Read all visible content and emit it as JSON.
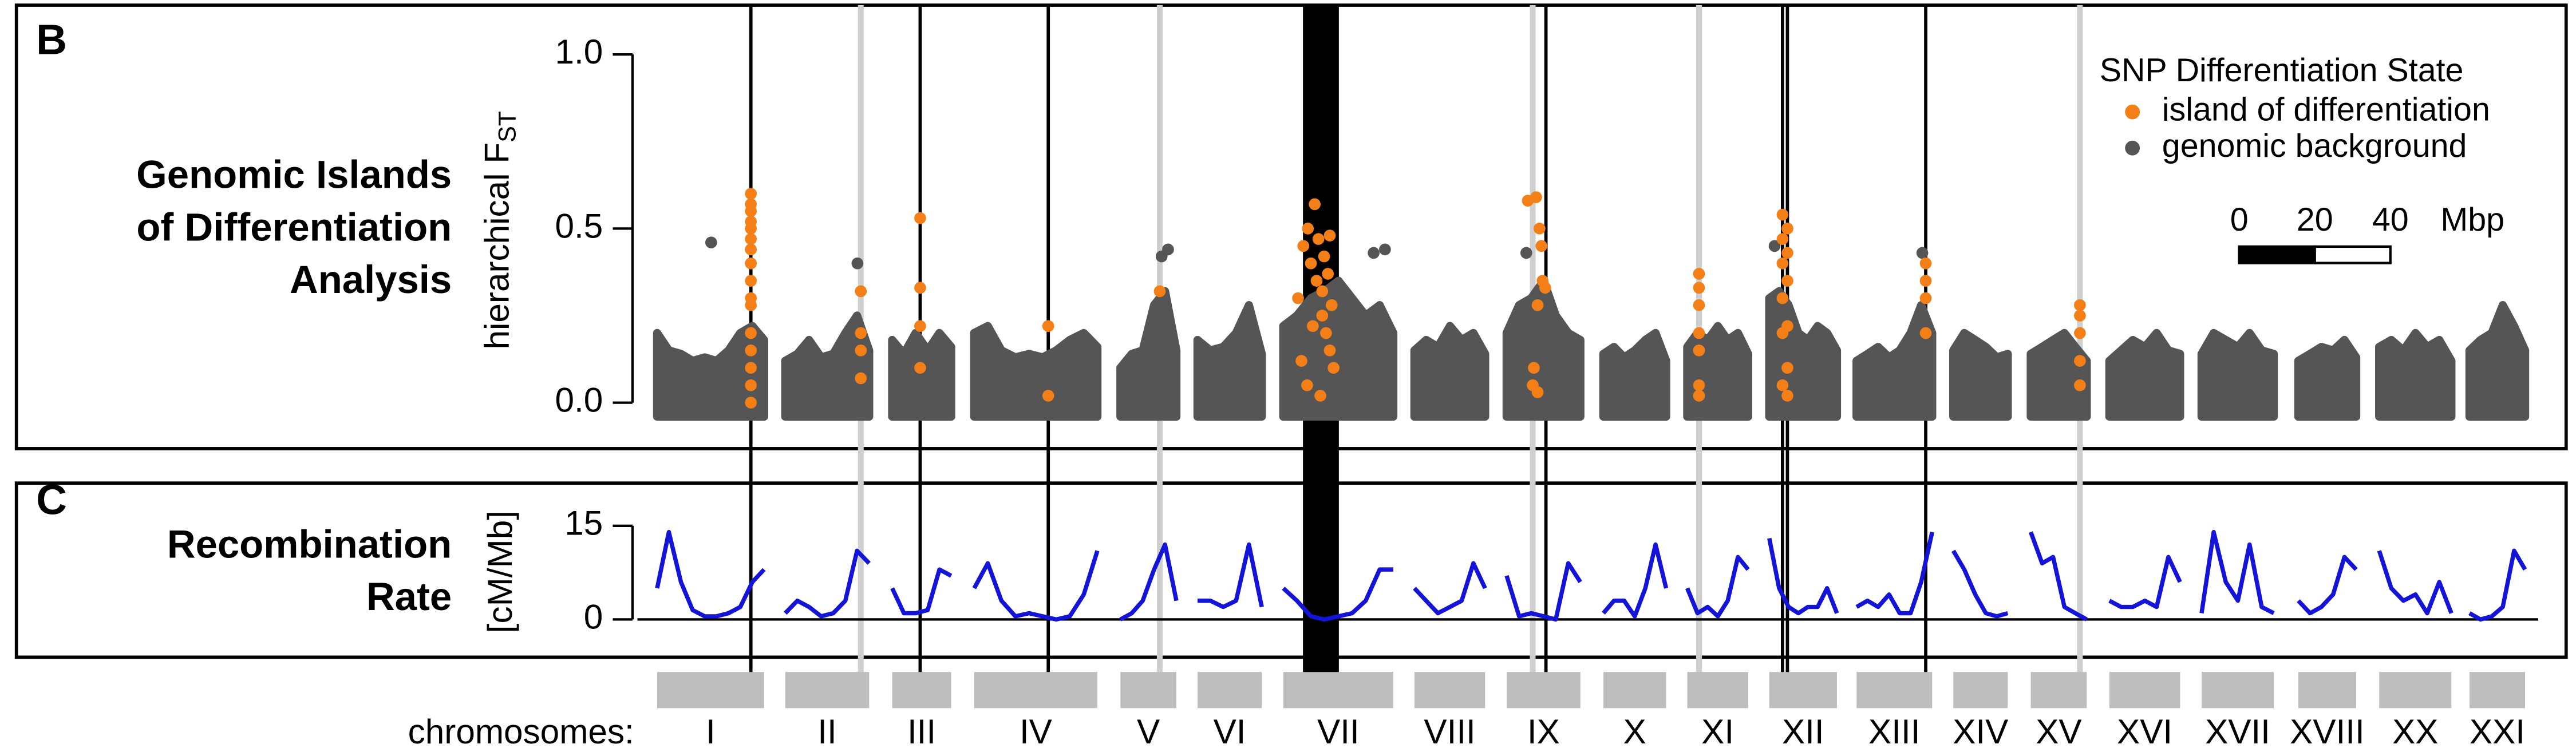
{
  "chart_data": [
    {
      "type": "scatter",
      "panel": "B",
      "title": [
        "Genomic Islands",
        "of Differentiation",
        "Analysis"
      ],
      "ylabel": "hierarchical F",
      "ylabel_subscript": "ST",
      "xlim": [
        0,
        494.3
      ],
      "ylim": [
        -0.04,
        1.05
      ],
      "yticks": [
        {
          "value": 0,
          "label": "0.0"
        },
        {
          "value": 0.5,
          "label": "0.5"
        },
        {
          "value": 1,
          "label": "1.0"
        }
      ],
      "legend_title": "SNP Differentiation State",
      "legend": "top-right",
      "series": [
        {
          "name": "island of differentiation",
          "color": "#f47f17",
          "x": [
            24.8,
            24.8,
            24.8,
            24.8,
            24.8,
            24.8,
            24.8,
            24.8,
            24.8,
            24.8,
            24.8,
            24.8,
            24.8,
            24.8,
            24.8,
            24.8,
            53.9,
            53.9,
            53.9,
            53.9,
            69.6,
            69.6,
            69.6,
            69.6,
            103.5,
            103.5,
            133,
            169.6,
            171,
            172.2,
            173,
            174,
            174.5,
            175,
            176,
            176.5,
            177,
            177.5,
            178,
            178.5,
            179,
            172,
            175.5,
            173.5,
            176,
            170.5,
            178,
            230.4,
            232.6,
            233.5,
            234,
            234.3,
            235,
            233,
            232,
            231.7,
            233,
            275.7,
            275.7,
            275.7,
            275.7,
            275.7,
            275.7,
            275.7,
            297.8,
            299.1,
            297.8,
            299.1,
            297.8,
            299.1,
            297.8,
            299.1,
            297.8,
            299.1,
            297.8,
            299.1,
            335.7,
            335.7,
            335.7,
            335.7,
            376.5,
            376.5,
            376.5,
            376.5,
            376.5
          ],
          "values": [
            0.6,
            0.57,
            0.55,
            0.52,
            0.5,
            0.47,
            0.44,
            0.4,
            0.35,
            0.3,
            0.28,
            0.2,
            0.15,
            0.1,
            0.05,
            0.0,
            0.32,
            0.2,
            0.15,
            0.07,
            0.53,
            0.33,
            0.22,
            0.1,
            0.22,
            0.02,
            0.32,
            0.3,
            0.45,
            0.5,
            0.4,
            0.57,
            0.35,
            0.47,
            0.25,
            0.42,
            0.2,
            0.37,
            0.15,
            0.28,
            0.1,
            0.05,
            0.02,
            0.22,
            0.32,
            0.12,
            0.48,
            0.58,
            0.59,
            0.5,
            0.45,
            0.35,
            0.33,
            0.28,
            0.1,
            0.05,
            0.03,
            0.37,
            0.33,
            0.28,
            0.2,
            0.15,
            0.05,
            0.02,
            0.54,
            0.5,
            0.47,
            0.43,
            0.4,
            0.35,
            0.3,
            0.22,
            0.2,
            0.1,
            0.05,
            0.02,
            0.4,
            0.35,
            0.3,
            0.2,
            0.28,
            0.25,
            0.2,
            0.12,
            0.05
          ]
        },
        {
          "name": "genomic background",
          "color": "#555555",
          "x": [
            14.3,
            53,
            133.5,
            135.2,
            189.6,
            192.6,
            230,
            295.7,
            334.8
          ],
          "values": [
            0.46,
            0.4,
            0.42,
            0.44,
            0.43,
            0.44,
            0.43,
            0.45,
            0.43
          ]
        }
      ],
      "background_envelope": [
        {
          "x": [
            0,
            3.1,
            6.3,
            9.4,
            12.6,
            15.7,
            18.9,
            22,
            25.2,
            28.3
          ],
          "values": [
            0.2,
            0.15,
            0.14,
            0.12,
            0.13,
            0.12,
            0.15,
            0.2,
            0.22,
            0.18
          ]
        },
        {
          "x": [
            33.9,
            37.1,
            40.2,
            43.4,
            46.6,
            49.8,
            52.9,
            56.1
          ],
          "values": [
            0.12,
            0.14,
            0.18,
            0.13,
            0.14,
            0.2,
            0.25,
            0.15
          ]
        },
        {
          "x": [
            62.2,
            65.3,
            68.4,
            71.6,
            74.7,
            77.8
          ],
          "values": [
            0.18,
            0.14,
            0.2,
            0.15,
            0.2,
            0.16
          ]
        },
        {
          "x": [
            83.9,
            87.5,
            91.1,
            94.8,
            98.4,
            102,
            105.6,
            109.2,
            112.9,
            116.5
          ],
          "values": [
            0.2,
            0.22,
            0.15,
            0.13,
            0.14,
            0.13,
            0.15,
            0.18,
            0.2,
            0.16
          ]
        },
        {
          "x": [
            122.6,
            125.6,
            128.5,
            131.5,
            134.4,
            137.4
          ],
          "values": [
            0.1,
            0.14,
            0.15,
            0.28,
            0.32,
            0.15
          ]
        },
        {
          "x": [
            143,
            146.4,
            149.8,
            153.2,
            156.6,
            160
          ],
          "values": [
            0.18,
            0.15,
            0.16,
            0.2,
            0.28,
            0.14
          ]
        },
        {
          "x": [
            165.7,
            169.3,
            173,
            176.6,
            180.3,
            183.9,
            187.5,
            191.2,
            194.8
          ],
          "values": [
            0.22,
            0.25,
            0.3,
            0.32,
            0.35,
            0.3,
            0.25,
            0.28,
            0.2
          ]
        },
        {
          "x": [
            200.4,
            203.5,
            206.6,
            209.8,
            212.9,
            216,
            219.1
          ],
          "values": [
            0.15,
            0.18,
            0.16,
            0.22,
            0.18,
            0.2,
            0.14
          ]
        },
        {
          "x": [
            224.8,
            228.1,
            231.3,
            234.6,
            237.8,
            241.1,
            244.3
          ],
          "values": [
            0.2,
            0.28,
            0.3,
            0.35,
            0.25,
            0.2,
            0.18
          ]
        },
        {
          "x": [
            250.4,
            253.2,
            255.9,
            258.7,
            261.5,
            264.2,
            267
          ],
          "values": [
            0.14,
            0.16,
            0.13,
            0.15,
            0.18,
            0.2,
            0.12
          ]
        },
        {
          "x": [
            272.6,
            275.3,
            278,
            280.7,
            283.3,
            286,
            288.7
          ],
          "values": [
            0.16,
            0.2,
            0.18,
            0.22,
            0.18,
            0.2,
            0.14
          ]
        },
        {
          "x": [
            294.3,
            296.9,
            299.4,
            302,
            304.5,
            307.1,
            309.6,
            312.2
          ],
          "values": [
            0.3,
            0.32,
            0.28,
            0.2,
            0.18,
            0.22,
            0.2,
            0.15
          ]
        },
        {
          "x": [
            317.4,
            320.3,
            323.1,
            326,
            328.8,
            331.7,
            334.5,
            337.4
          ],
          "values": [
            0.12,
            0.14,
            0.16,
            0.13,
            0.15,
            0.2,
            0.28,
            0.2
          ]
        },
        {
          "x": [
            343,
            345.9,
            348.8,
            351.6,
            354.5,
            357.4
          ],
          "values": [
            0.15,
            0.2,
            0.18,
            0.16,
            0.13,
            0.14
          ]
        },
        {
          "x": [
            363.5,
            366.5,
            369.4,
            372.4,
            375.3,
            378.3
          ],
          "values": [
            0.14,
            0.16,
            0.18,
            0.2,
            0.16,
            0.12
          ]
        },
        {
          "x": [
            384.3,
            387.4,
            390.5,
            393.7,
            396.8,
            399.9,
            403
          ],
          "values": [
            0.12,
            0.15,
            0.18,
            0.16,
            0.2,
            0.15,
            0.14
          ]
        },
        {
          "x": [
            408.7,
            411.9,
            415.1,
            418.3,
            421.4,
            424.6,
            427.8
          ],
          "values": [
            0.14,
            0.2,
            0.18,
            0.16,
            0.2,
            0.15,
            0.14
          ]
        },
        {
          "x": [
            434.3,
            437.4,
            440.4,
            443.5,
            446.5,
            449.6
          ],
          "values": [
            0.12,
            0.14,
            0.16,
            0.15,
            0.18,
            0.13
          ]
        },
        {
          "x": [
            455.7,
            458.9,
            462.1,
            465.3,
            468.4,
            471.6,
            474.8
          ],
          "values": [
            0.16,
            0.18,
            0.15,
            0.2,
            0.16,
            0.18,
            0.12
          ]
        },
        {
          "x": [
            479.6,
            482.5,
            485.5,
            488.4,
            491.4,
            494.3
          ],
          "values": [
            0.15,
            0.18,
            0.2,
            0.28,
            0.22,
            0.15
          ]
        }
      ],
      "scale_bar": {
        "ticks": [
          0,
          20,
          40
        ],
        "unit": "Mbp"
      }
    },
    {
      "type": "line",
      "panel": "C",
      "title": [
        "Recombination",
        "Rate"
      ],
      "ylabel": "[cM/Mb]",
      "xlim": [
        0,
        494.3
      ],
      "ylim": [
        0,
        15
      ],
      "yticks": [
        0,
        15
      ],
      "zero_line": true,
      "color": "#1414d8",
      "segments": [
        {
          "x": [
            0,
            3.1,
            6.3,
            9.4,
            12.6,
            15.7,
            18.9,
            22,
            25.2,
            28.3
          ],
          "values": [
            5,
            14,
            6,
            1.5,
            0.5,
            0.5,
            1,
            2,
            6,
            8
          ]
        },
        {
          "x": [
            33.9,
            37.1,
            40.2,
            43.4,
            46.6,
            49.8,
            52.9,
            56.1
          ],
          "values": [
            1,
            3,
            2,
            0.5,
            1,
            3,
            11,
            9
          ]
        },
        {
          "x": [
            62.2,
            65.3,
            68.4,
            71.6,
            74.7,
            77.8
          ],
          "values": [
            5,
            1,
            1,
            1.5,
            8,
            7
          ]
        },
        {
          "x": [
            83.9,
            87.5,
            91.1,
            94.8,
            98.4,
            102,
            105.6,
            109.2,
            112.9,
            116.5
          ],
          "values": [
            5,
            9,
            3,
            0.5,
            1,
            0.5,
            0,
            0.5,
            4,
            11
          ]
        },
        {
          "x": [
            122.6,
            125.6,
            128.5,
            131.5,
            134.4,
            137.4
          ],
          "values": [
            0,
            1,
            3,
            8,
            12,
            3
          ]
        },
        {
          "x": [
            143,
            146.4,
            149.8,
            153.2,
            156.6,
            160
          ],
          "values": [
            3,
            3,
            2,
            3,
            12,
            2
          ]
        },
        {
          "x": [
            165.7,
            169.3,
            173,
            176.6,
            180.3,
            183.9,
            187.5,
            191.2,
            194.8
          ],
          "values": [
            5,
            3,
            0.5,
            0,
            0.5,
            1,
            3,
            8,
            8
          ]
        },
        {
          "x": [
            200.4,
            203.5,
            206.6,
            209.8,
            212.9,
            216,
            219.1
          ],
          "values": [
            5,
            3,
            1,
            2,
            3,
            9,
            5
          ]
        },
        {
          "x": [
            224.8,
            228.1,
            231.3,
            234.6,
            237.8,
            241.1,
            244.3
          ],
          "values": [
            7,
            0.5,
            1,
            0.5,
            0,
            9,
            6
          ]
        },
        {
          "x": [
            250.4,
            253.2,
            255.9,
            258.7,
            261.5,
            264.2,
            267
          ],
          "values": [
            1,
            3,
            3,
            0.5,
            5,
            12,
            5
          ]
        },
        {
          "x": [
            272.6,
            275.3,
            278,
            280.7,
            283.3,
            286,
            288.7
          ],
          "values": [
            5,
            1,
            2,
            0.5,
            3,
            10,
            8
          ]
        },
        {
          "x": [
            294.3,
            296.9,
            299.4,
            302,
            304.5,
            307.1,
            309.6,
            312.2
          ],
          "values": [
            13,
            5,
            2,
            1,
            2,
            2,
            5,
            1
          ]
        },
        {
          "x": [
            317.4,
            320.3,
            323.1,
            326,
            328.8,
            331.7,
            334.5,
            337.4
          ],
          "values": [
            2,
            3,
            2,
            4,
            1,
            1,
            6,
            14
          ]
        },
        {
          "x": [
            343,
            345.9,
            348.8,
            351.6,
            354.5,
            357.4
          ],
          "values": [
            11,
            8,
            4,
            1,
            0.5,
            1
          ]
        },
        {
          "x": [
            363.5,
            366.5,
            369.4,
            372.4,
            375.3,
            378.3
          ],
          "values": [
            14,
            9,
            10,
            2,
            1,
            0
          ]
        },
        {
          "x": [
            384.3,
            387.4,
            390.5,
            393.7,
            396.8,
            399.9,
            403
          ],
          "values": [
            3,
            2,
            2,
            3,
            2,
            10,
            6
          ]
        },
        {
          "x": [
            408.7,
            411.9,
            415.1,
            418.3,
            421.4,
            424.6,
            427.8
          ],
          "values": [
            1,
            14,
            6,
            3,
            12,
            2,
            1
          ]
        },
        {
          "x": [
            434.3,
            437.4,
            440.4,
            443.5,
            446.5,
            449.6
          ],
          "values": [
            3,
            1,
            2,
            4,
            10,
            8
          ]
        },
        {
          "x": [
            455.7,
            458.9,
            462.1,
            465.3,
            468.4,
            471.6,
            474.8
          ],
          "values": [
            11,
            5,
            3,
            4,
            1,
            6,
            1
          ]
        },
        {
          "x": [
            479.6,
            482.5,
            485.5,
            488.4,
            491.4,
            494.3
          ],
          "values": [
            1,
            0,
            0.5,
            2,
            11,
            8
          ]
        }
      ]
    }
  ],
  "chromosomes": {
    "label": "chromosomes:",
    "names": [
      "I",
      "II",
      "III",
      "IV",
      "V",
      "VI",
      "VII",
      "VIII",
      "IX",
      "X",
      "XI",
      "XII",
      "XIII",
      "XIV",
      "XV",
      "XVI",
      "XVII",
      "XVIII",
      "XX",
      "XXI"
    ],
    "start": [
      0,
      33.9,
      62.2,
      83.9,
      122.6,
      143,
      165.7,
      200.4,
      224.8,
      250.4,
      272.6,
      294.3,
      317.4,
      343,
      363.5,
      384.3,
      408.7,
      434.3,
      455.7,
      479.6
    ],
    "end": [
      28.3,
      56.1,
      77.8,
      116.5,
      137.4,
      160,
      194.8,
      219.1,
      244.3,
      267,
      288.7,
      312.2,
      337.4,
      357.4,
      378.3,
      403,
      427.8,
      449.6,
      474.8,
      494.3
    ]
  },
  "marker_loci": {
    "black": [
      24.8,
      69.6,
      103.5,
      235.2,
      297.8,
      299.1,
      335.7
    ],
    "gray": [
      53.9,
      133,
      231.7,
      275.7,
      376.5
    ],
    "black_region": [
      170.9,
      180.4
    ]
  }
}
